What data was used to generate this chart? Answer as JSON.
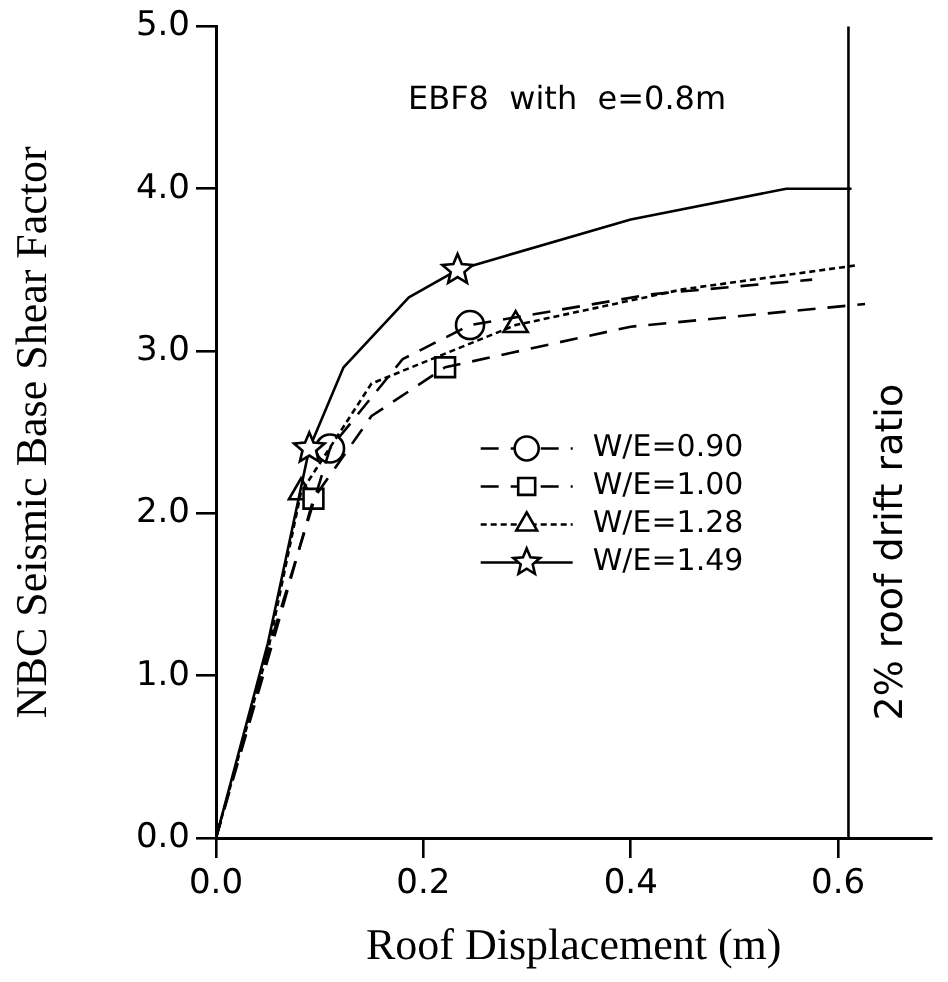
{
  "chart_data": {
    "type": "line",
    "title": "EBF8  with  e=0.8m",
    "xlabel": "Roof Displacement (m)",
    "ylabel": "NBC Seismic Base Shear Factor",
    "xlim": [
      0,
      0.69
    ],
    "ylim": [
      0,
      5
    ],
    "xticks": [
      {
        "value": 0,
        "label": "0.0"
      },
      {
        "value": 0.2,
        "label": "0.2"
      },
      {
        "value": 0.4,
        "label": "0.4"
      },
      {
        "value": 0.6,
        "label": "0.6"
      }
    ],
    "yticks": [
      {
        "value": 0,
        "label": "0.0"
      },
      {
        "value": 1,
        "label": "1.0"
      },
      {
        "value": 2,
        "label": "2.0"
      },
      {
        "value": 3,
        "label": "3.0"
      },
      {
        "value": 4,
        "label": "4.0"
      },
      {
        "value": 5,
        "label": "5.0"
      }
    ],
    "grid": false,
    "legend": "center right",
    "ref_lines": [
      {
        "axis": "x",
        "value": 0.61,
        "label": "2% roof drift ratio",
        "color": "#000000",
        "line_style": "solid"
      }
    ],
    "series": [
      {
        "color": "#000000",
        "line_style": "dashed",
        "marker": "none",
        "x": [
          0,
          0.05,
          0.11,
          0.18,
          0.245,
          0.42,
          0.575
        ],
        "values": [
          0,
          1.15,
          2.4,
          2.95,
          3.16,
          3.35,
          3.44
        ]
      },
      {
        "color": "#000000",
        "line_style": "dashed",
        "marker": "none",
        "x": [
          0,
          0.05,
          0.094,
          0.15,
          0.221,
          0.4,
          0.626
        ],
        "values": [
          0,
          1.1,
          2.09,
          2.6,
          2.9,
          3.15,
          3.29
        ]
      },
      {
        "color": "#000000",
        "line_style": "dotted",
        "marker": "none",
        "x": [
          0,
          0.05,
          0.082,
          0.15,
          0.289,
          0.45,
          0.62
        ],
        "values": [
          0,
          1.15,
          2.13,
          2.8,
          3.16,
          3.38,
          3.53
        ]
      },
      {
        "color": "#000000",
        "line_style": "solid",
        "marker": "none",
        "x": [
          0,
          0.05,
          0.09,
          0.123,
          0.186,
          0.233,
          0.4,
          0.55,
          0.613
        ],
        "values": [
          0,
          1.2,
          2.4,
          2.9,
          3.33,
          3.5,
          3.81,
          4.0,
          4.0
        ]
      },
      {
        "type": "scatter",
        "name": "W/E=0.90",
        "color": "#000000",
        "line_style": "dashed",
        "marker": "circle",
        "x": [
          0.11,
          0.245
        ],
        "values": [
          2.4,
          3.16
        ]
      },
      {
        "type": "scatter",
        "name": "W/E=1.00",
        "color": "#000000",
        "line_style": "dashed",
        "marker": "square",
        "x": [
          0.094,
          0.221
        ],
        "values": [
          2.09,
          2.9
        ]
      },
      {
        "type": "scatter",
        "name": "W/E=1.28",
        "color": "#000000",
        "line_style": "dotted",
        "marker": "triangle",
        "x": [
          0.082,
          0.289
        ],
        "values": [
          2.13,
          3.16
        ]
      },
      {
        "type": "scatter",
        "name": "W/E=1.49",
        "color": "#000000",
        "line_style": "solid",
        "marker": "star",
        "x": [
          0.09,
          0.233
        ],
        "values": [
          2.4,
          3.5
        ]
      }
    ]
  }
}
